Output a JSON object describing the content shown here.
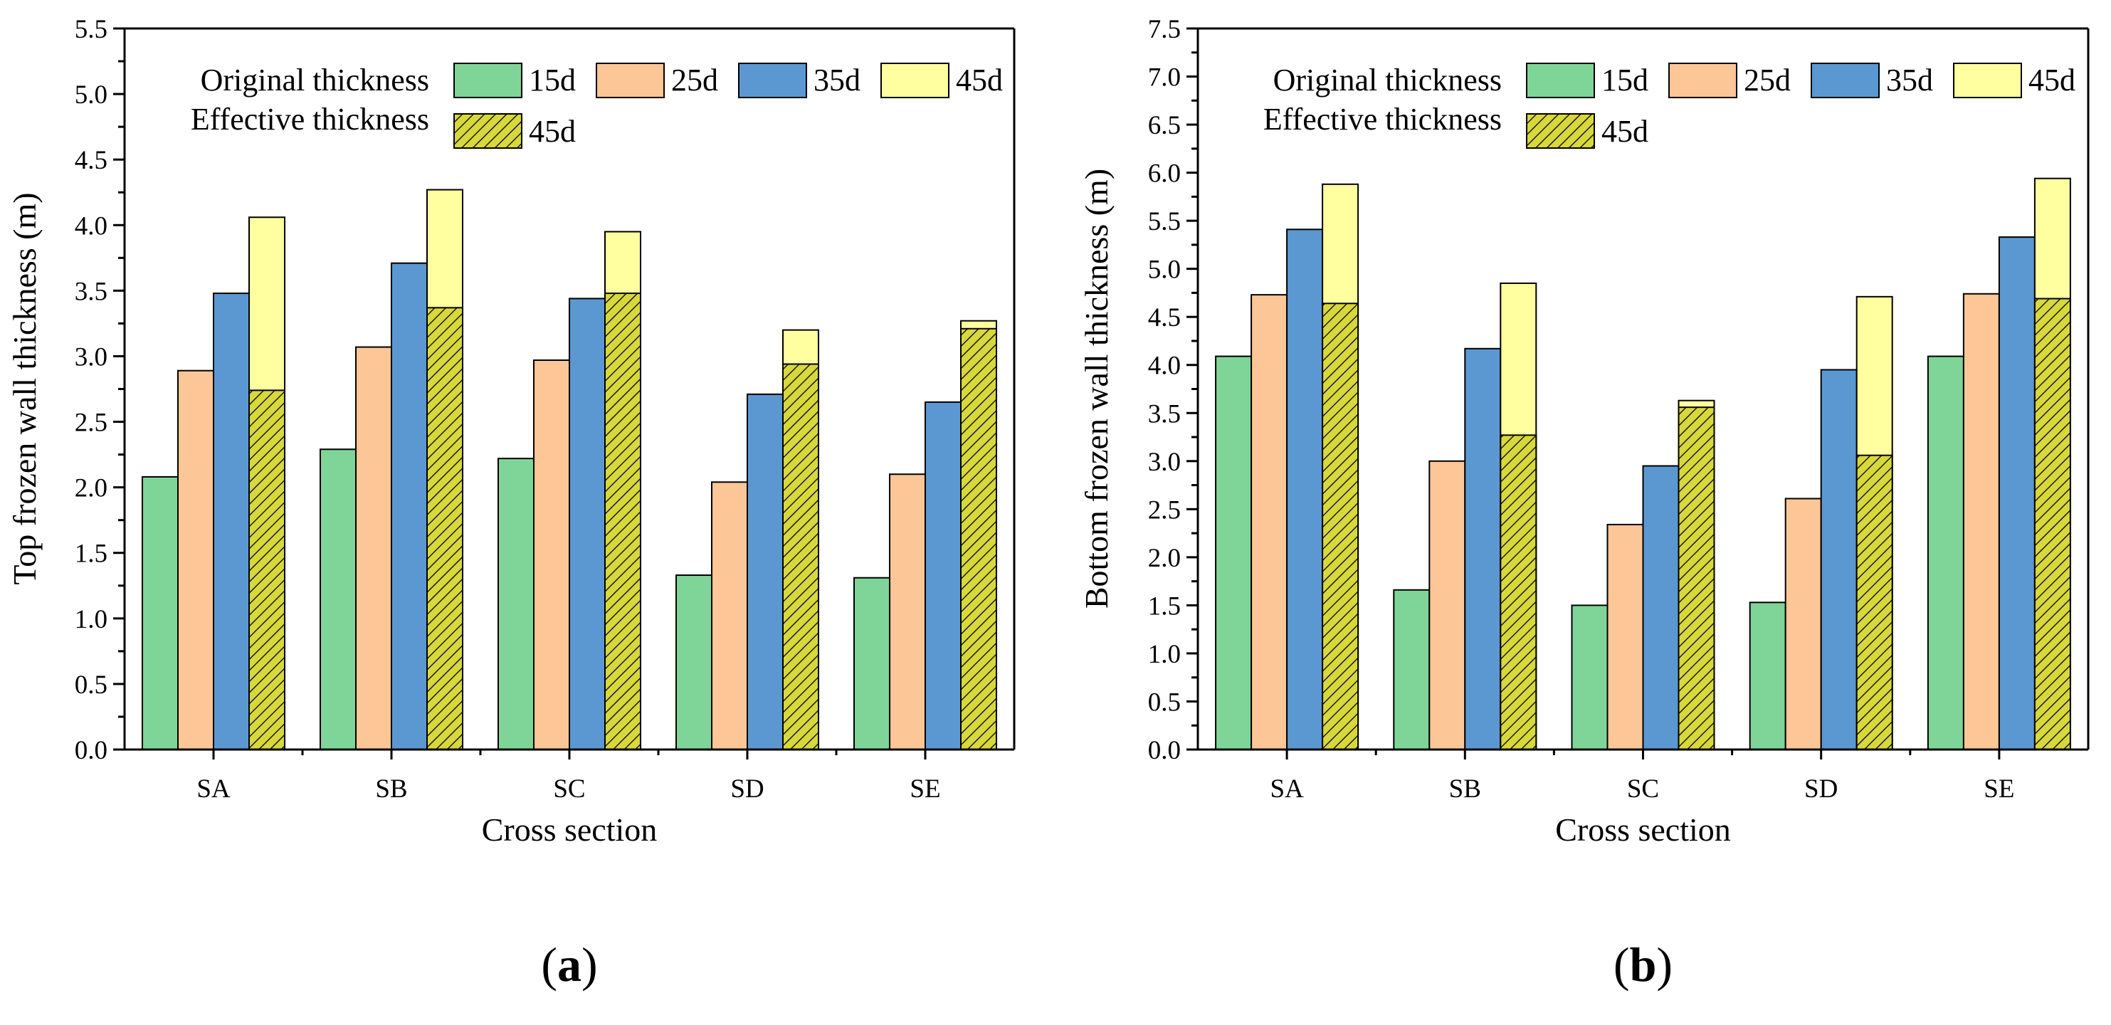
{
  "chart_data": [
    {
      "type": "bar",
      "panel_label": "a",
      "title": "",
      "xlabel": "Cross section",
      "ylabel": "Top frozen wall thickness (m)",
      "categories": [
        "SA",
        "SB",
        "SC",
        "SD",
        "SE"
      ],
      "ylim": [
        0,
        5.5
      ],
      "ytick_step": 0.5,
      "ytick_labels": [
        "0.0",
        "0.5",
        "1.0",
        "1.5",
        "2.0",
        "2.5",
        "3.0",
        "3.5",
        "4.0",
        "4.5",
        "5.0",
        "5.5"
      ],
      "series": [
        {
          "name": "15d",
          "group": "Original thickness",
          "color": "#7fd597",
          "values": [
            2.08,
            2.29,
            2.22,
            1.33,
            1.31
          ]
        },
        {
          "name": "25d",
          "group": "Original thickness",
          "color": "#fdc697",
          "values": [
            2.89,
            3.07,
            2.97,
            2.04,
            2.1
          ]
        },
        {
          "name": "35d",
          "group": "Original thickness",
          "color": "#5b98d2",
          "values": [
            3.48,
            3.71,
            3.44,
            2.71,
            2.65
          ]
        },
        {
          "name": "45d",
          "group": "Original thickness",
          "color": "#ffff9f",
          "values": [
            4.06,
            4.27,
            3.95,
            3.2,
            3.27
          ]
        },
        {
          "name": "45d",
          "group": "Effective thickness",
          "color": "#d8d83a",
          "pattern": "hatch",
          "values": [
            2.74,
            3.37,
            3.48,
            2.94,
            3.21
          ]
        }
      ],
      "legend": {
        "position": "top-left",
        "original_label": "Original thickness",
        "effective_label": "Effective thickness"
      }
    },
    {
      "type": "bar",
      "panel_label": "b",
      "title": "",
      "xlabel": "Cross section",
      "ylabel": "Bottom frozen wall thickness (m)",
      "categories": [
        "SA",
        "SB",
        "SC",
        "SD",
        "SE"
      ],
      "ylim": [
        0,
        7.5
      ],
      "ytick_step": 0.5,
      "ytick_labels": [
        "0.0",
        "0.5",
        "1.0",
        "1.5",
        "2.0",
        "2.5",
        "3.0",
        "3.5",
        "4.0",
        "4.5",
        "5.0",
        "5.5",
        "6.0",
        "6.5",
        "7.0",
        "7.5"
      ],
      "series": [
        {
          "name": "15d",
          "group": "Original thickness",
          "color": "#7fd597",
          "values": [
            4.09,
            1.66,
            1.5,
            1.53,
            4.09
          ]
        },
        {
          "name": "25d",
          "group": "Original thickness",
          "color": "#fdc697",
          "values": [
            4.73,
            3.0,
            2.34,
            2.61,
            4.74
          ]
        },
        {
          "name": "35d",
          "group": "Original thickness",
          "color": "#5b98d2",
          "values": [
            5.41,
            4.17,
            2.95,
            3.95,
            5.33
          ]
        },
        {
          "name": "45d",
          "group": "Original thickness",
          "color": "#ffff9f",
          "values": [
            5.88,
            4.85,
            3.63,
            4.71,
            5.94
          ]
        },
        {
          "name": "45d",
          "group": "Effective thickness",
          "color": "#d8d83a",
          "pattern": "hatch",
          "values": [
            4.64,
            3.27,
            3.56,
            3.06,
            4.69
          ]
        }
      ],
      "legend": {
        "position": "top-left",
        "original_label": "Original thickness",
        "effective_label": "Effective thickness"
      }
    }
  ]
}
